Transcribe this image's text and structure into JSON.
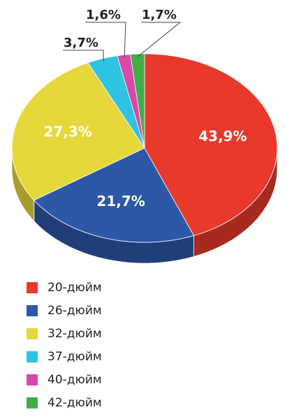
{
  "chart_data": {
    "type": "pie",
    "categories": [
      "20-дюйм",
      "26-дюйм",
      "32-дюйм",
      "37-дюйм",
      "40-дюйм",
      "42-дюйм"
    ],
    "values": [
      43.9,
      21.7,
      27.3,
      3.7,
      1.6,
      1.7
    ],
    "value_labels": [
      "43,9%",
      "21,7%",
      "27,3%",
      "3,7%",
      "1,6%",
      "1,7%"
    ],
    "colors": [
      "#e8392b",
      "#2d58a8",
      "#e6d83a",
      "#2ec3e0",
      "#d84aa8",
      "#3fae49"
    ]
  }
}
